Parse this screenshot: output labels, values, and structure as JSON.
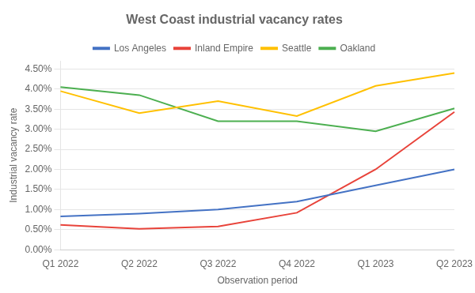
{
  "chart_data": {
    "type": "line",
    "title": "West Coast industrial vacancy rates",
    "x_label": "Observation period",
    "y_label": "Industrial vacancy rate",
    "categories": [
      "Q1 2022",
      "Q2 2022",
      "Q3 2022",
      "Q4 2022",
      "Q1 2023",
      "Q2 2023"
    ],
    "series": [
      {
        "name": "Los Angeles",
        "color": "#4472C4",
        "values": [
          0.0083,
          0.009,
          0.01,
          0.012,
          0.016,
          0.02
        ]
      },
      {
        "name": "Inland Empire",
        "color": "#E8433A",
        "values": [
          0.0062,
          0.0052,
          0.0058,
          0.0092,
          0.02,
          0.0343
        ]
      },
      {
        "name": "Seattle",
        "color": "#FFC000",
        "values": [
          0.0395,
          0.034,
          0.037,
          0.0333,
          0.0408,
          0.044
        ]
      },
      {
        "name": "Oakland",
        "color": "#4CAF50",
        "values": [
          0.0405,
          0.0385,
          0.032,
          0.032,
          0.0295,
          0.0352
        ]
      }
    ],
    "ylim": [
      0.0,
      0.047
    ],
    "yticks": [
      {
        "value": 0,
        "label": "0.00%"
      },
      {
        "value": 0.005,
        "label": "0.50%"
      },
      {
        "value": 0.01,
        "label": "1.00%"
      },
      {
        "value": 0.015,
        "label": "1.50%"
      },
      {
        "value": 0.02,
        "label": "2.00%"
      },
      {
        "value": 0.025,
        "label": "2.50%"
      },
      {
        "value": 0.03,
        "label": "3.00%"
      },
      {
        "value": 0.035,
        "label": "3.50%"
      },
      {
        "value": 0.04,
        "label": "4.00%"
      },
      {
        "value": 0.045,
        "label": "4.50%"
      }
    ],
    "grid": true,
    "legend": "top"
  }
}
